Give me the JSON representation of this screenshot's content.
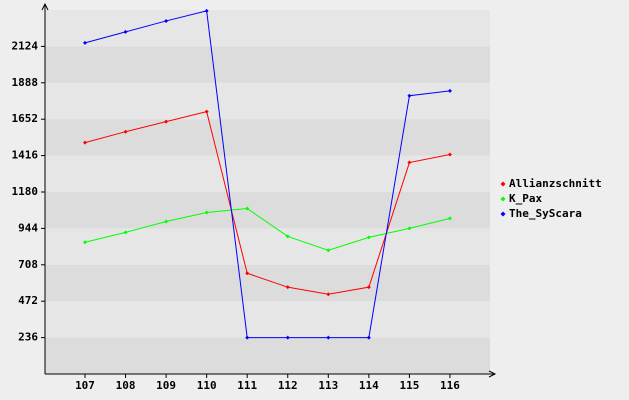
{
  "chart_data": {
    "type": "line",
    "categories": [
      "107",
      "108",
      "109",
      "110",
      "111",
      "112",
      "113",
      "114",
      "115",
      "116"
    ],
    "series": [
      {
        "name": "Allianzschnitt",
        "color": "#ff0000",
        "values": [
          1500,
          1571,
          1636,
          1701,
          653,
          563,
          517,
          563,
          1371,
          1423
        ]
      },
      {
        "name": "K_Pax",
        "color": "#00ff00",
        "values": [
          854,
          918,
          989,
          1047,
          1073,
          892,
          802,
          886,
          944,
          1009
        ]
      },
      {
        "name": "The_SyScara",
        "color": "#0000ff",
        "values": [
          2147,
          2218,
          2289,
          2354,
          236,
          236,
          236,
          236,
          1804,
          1836
        ]
      }
    ],
    "ylim": [
      0,
      2360
    ],
    "yticks": [
      236,
      472,
      708,
      944,
      1180,
      1416,
      1652,
      1888,
      2124
    ],
    "grid": true,
    "legend": "right"
  }
}
